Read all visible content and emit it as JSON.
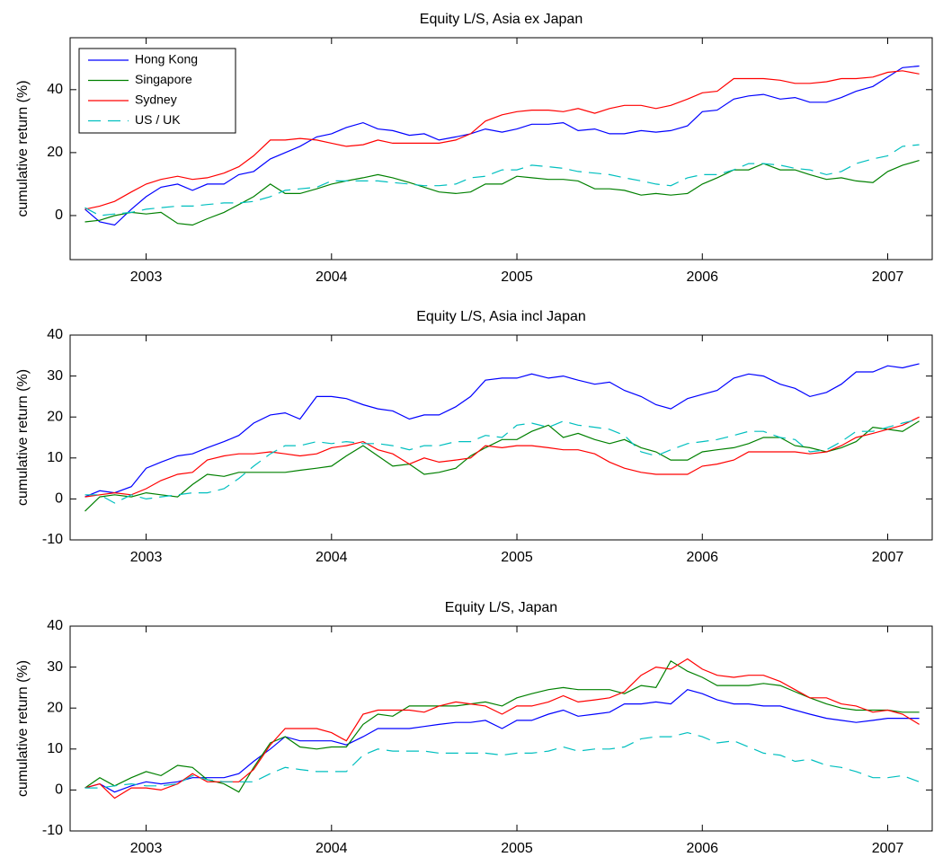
{
  "chart_data": [
    {
      "type": "line",
      "title": "Equity L/S, Asia ex Japan",
      "ylabel": "cumulative return (%)",
      "legend": "upper left",
      "xlim": [
        2002.59,
        2007.24
      ],
      "xticks": [
        2003,
        2004,
        2005,
        2006,
        2007
      ],
      "ylim": [
        -14,
        56.5
      ],
      "yticks": [
        0,
        20,
        40
      ],
      "x": [
        2002.67,
        2002.75,
        2002.83,
        2002.92,
        2003.0,
        2003.08,
        2003.17,
        2003.25,
        2003.33,
        2003.42,
        2003.5,
        2003.58,
        2003.67,
        2003.75,
        2003.83,
        2003.92,
        2004.0,
        2004.08,
        2004.17,
        2004.25,
        2004.33,
        2004.42,
        2004.5,
        2004.58,
        2004.67,
        2004.75,
        2004.83,
        2004.92,
        2005.0,
        2005.08,
        2005.17,
        2005.25,
        2005.33,
        2005.42,
        2005.5,
        2005.58,
        2005.67,
        2005.75,
        2005.83,
        2005.92,
        2006.0,
        2006.08,
        2006.17,
        2006.25,
        2006.33,
        2006.42,
        2006.5,
        2006.58,
        2006.67,
        2006.75,
        2006.83,
        2006.92,
        2007.0,
        2007.08,
        2007.17
      ],
      "series": [
        {
          "name": "Hong Kong",
          "color": "#0000ff",
          "linestyle": "solid",
          "values": [
            2,
            -2,
            -3,
            2,
            6,
            9,
            10,
            8,
            10,
            10,
            13,
            14,
            18,
            20,
            22,
            25,
            26,
            28,
            29.5,
            27.5,
            27,
            25.5,
            26,
            24,
            25,
            26,
            27.5,
            26.5,
            27.5,
            29,
            29,
            29.5,
            27,
            27.5,
            26,
            26,
            27,
            26.5,
            27,
            28.5,
            33,
            33.5,
            37,
            38,
            38.5,
            37,
            37.5,
            36,
            36,
            37.5,
            39.5,
            41,
            44,
            47,
            47.5
          ]
        },
        {
          "name": "Singapore",
          "color": "#008000",
          "linestyle": "solid",
          "values": [
            -2,
            -1.5,
            0,
            1,
            0.5,
            1,
            -2.5,
            -3,
            -1,
            1,
            3.5,
            6,
            10,
            7,
            7,
            8.5,
            10,
            11,
            12,
            13,
            12,
            10.5,
            9,
            7.5,
            7,
            7.5,
            10,
            10,
            12.5,
            12,
            11.5,
            11.5,
            11,
            8.5,
            8.5,
            8,
            6.5,
            7,
            6.5,
            7,
            10,
            12,
            14.5,
            14.5,
            16.5,
            14.5,
            14.5,
            13,
            11.5,
            12,
            11,
            10.5,
            14,
            16,
            17.5
          ]
        },
        {
          "name": "Sydney",
          "color": "#ff0000",
          "linestyle": "solid",
          "values": [
            2,
            3,
            4.5,
            7.5,
            10,
            11.5,
            12.5,
            11.5,
            12,
            13.5,
            15.5,
            19,
            24,
            24,
            24.5,
            24,
            23,
            22,
            22.5,
            24,
            23,
            23,
            23,
            23,
            24,
            26,
            30,
            32,
            33,
            33.5,
            33.5,
            33,
            34,
            32.5,
            34,
            35,
            35,
            34,
            35,
            37,
            39,
            39.5,
            43.5,
            43.5,
            43.5,
            43,
            42,
            42,
            42.5,
            43.5,
            43.5,
            44,
            45.5,
            46,
            45
          ]
        },
        {
          "name": "US / UK",
          "color": "#00bfbf",
          "linestyle": "dashed",
          "values": [
            2.5,
            0,
            0.5,
            1,
            2,
            2.5,
            3,
            3,
            3.5,
            4,
            4,
            4.5,
            6,
            8,
            8.5,
            9,
            11,
            11,
            11,
            11,
            10.5,
            10,
            9.5,
            9.5,
            10,
            12,
            12.5,
            14.5,
            14.5,
            16,
            15.5,
            15,
            14,
            13.5,
            13,
            12,
            11,
            10,
            9.5,
            12,
            13,
            13,
            14.5,
            16.5,
            16.5,
            16,
            15,
            14.5,
            13,
            14,
            16.5,
            18,
            19,
            22,
            22.5
          ]
        }
      ]
    },
    {
      "type": "line",
      "title": "Equity L/S, Asia incl Japan",
      "ylabel": "cumulative return (%)",
      "xlim": [
        2002.59,
        2007.24
      ],
      "xticks": [
        2003,
        2004,
        2005,
        2006,
        2007
      ],
      "ylim": [
        -10,
        40
      ],
      "yticks": [
        -10,
        0,
        10,
        20,
        30,
        40
      ],
      "x": [
        2002.67,
        2002.75,
        2002.83,
        2002.92,
        2003.0,
        2003.08,
        2003.17,
        2003.25,
        2003.33,
        2003.42,
        2003.5,
        2003.58,
        2003.67,
        2003.75,
        2003.83,
        2003.92,
        2004.0,
        2004.08,
        2004.17,
        2004.25,
        2004.33,
        2004.42,
        2004.5,
        2004.58,
        2004.67,
        2004.75,
        2004.83,
        2004.92,
        2005.0,
        2005.08,
        2005.17,
        2005.25,
        2005.33,
        2005.42,
        2005.5,
        2005.58,
        2005.67,
        2005.75,
        2005.83,
        2005.92,
        2006.0,
        2006.08,
        2006.17,
        2006.25,
        2006.33,
        2006.42,
        2006.5,
        2006.58,
        2006.67,
        2006.75,
        2006.83,
        2006.92,
        2007.0,
        2007.08,
        2007.17
      ],
      "series": [
        {
          "color": "#0000ff",
          "linestyle": "solid",
          "values": [
            0.5,
            2,
            1.5,
            3,
            7.5,
            9,
            10.5,
            11,
            12.5,
            14,
            15.5,
            18.5,
            20.5,
            21,
            19.5,
            25,
            25,
            24.5,
            23,
            22,
            21.5,
            19.5,
            20.5,
            20.5,
            22.5,
            25,
            29,
            29.5,
            29.5,
            30.5,
            29.5,
            30,
            29,
            28,
            28.5,
            26.5,
            25,
            23,
            22,
            24.5,
            25.5,
            26.5,
            29.5,
            30.5,
            30,
            28,
            27,
            25,
            26,
            28,
            31,
            31,
            32.5,
            32,
            33
          ]
        },
        {
          "color": "#008000",
          "linestyle": "solid",
          "values": [
            -3,
            0.5,
            1,
            0.5,
            1.5,
            1,
            0.5,
            3.5,
            6,
            5.5,
            6.5,
            6.5,
            6.5,
            6.5,
            7,
            7.5,
            8,
            10.5,
            13,
            10.5,
            8,
            8.5,
            6,
            6.5,
            7.5,
            10.5,
            12.5,
            14.5,
            14.5,
            16.5,
            18,
            15,
            16,
            14.5,
            13.5,
            14.5,
            12.5,
            11.5,
            9.5,
            9.5,
            11.5,
            12,
            12.5,
            13.5,
            15,
            15,
            13,
            12.5,
            11.5,
            12.5,
            14,
            17.5,
            17,
            16.5,
            19
          ]
        },
        {
          "color": "#ff0000",
          "linestyle": "solid",
          "values": [
            0.5,
            1,
            1.5,
            1,
            2.5,
            4.5,
            6,
            6.5,
            9.5,
            10.5,
            11,
            11,
            11.5,
            11,
            10.5,
            11,
            12.5,
            13,
            14,
            12,
            11,
            8.5,
            10,
            9,
            9.5,
            10,
            13,
            12.5,
            13,
            13,
            12.5,
            12,
            12,
            11,
            9,
            7.5,
            6.5,
            6,
            6,
            6,
            8,
            8.5,
            9.5,
            11.5,
            11.5,
            11.5,
            11.5,
            11,
            11.5,
            13,
            15,
            16,
            17,
            18,
            20
          ]
        },
        {
          "color": "#00bfbf",
          "linestyle": "dashed",
          "values": [
            1,
            1,
            -1,
            1,
            0,
            0.5,
            1,
            1.5,
            1.5,
            2.5,
            5,
            8,
            11,
            13,
            13,
            14,
            13.5,
            14,
            13.5,
            13.5,
            13,
            12,
            13,
            13,
            14,
            14,
            15.5,
            15,
            18,
            18.5,
            17.5,
            19,
            18,
            17.5,
            17,
            15.5,
            11.5,
            10.5,
            12,
            13.5,
            14,
            14.5,
            15.5,
            16.5,
            16.5,
            15,
            14.5,
            11.5,
            12,
            14,
            16.5,
            16.5,
            17.5,
            18.5,
            19.5
          ]
        }
      ]
    },
    {
      "type": "line",
      "title": "Equity L/S, Japan",
      "ylabel": "cumulative return (%)",
      "xlim": [
        2002.59,
        2007.24
      ],
      "xticks": [
        2003,
        2004,
        2005,
        2006,
        2007
      ],
      "ylim": [
        -10,
        40
      ],
      "yticks": [
        -10,
        0,
        10,
        20,
        30,
        40
      ],
      "x": [
        2002.67,
        2002.75,
        2002.83,
        2002.92,
        2003.0,
        2003.08,
        2003.17,
        2003.25,
        2003.33,
        2003.42,
        2003.5,
        2003.58,
        2003.67,
        2003.75,
        2003.83,
        2003.92,
        2004.0,
        2004.08,
        2004.17,
        2004.25,
        2004.33,
        2004.42,
        2004.5,
        2004.58,
        2004.67,
        2004.75,
        2004.83,
        2004.92,
        2005.0,
        2005.08,
        2005.17,
        2005.25,
        2005.33,
        2005.42,
        2005.5,
        2005.58,
        2005.67,
        2005.75,
        2005.83,
        2005.92,
        2006.0,
        2006.08,
        2006.17,
        2006.25,
        2006.33,
        2006.42,
        2006.5,
        2006.58,
        2006.67,
        2006.75,
        2006.83,
        2006.92,
        2007.0,
        2007.08,
        2007.17
      ],
      "series": [
        {
          "color": "#0000ff",
          "linestyle": "solid",
          "values": [
            0.5,
            1.5,
            -0.5,
            1,
            2,
            1.5,
            2,
            3,
            3,
            3,
            4,
            7,
            10,
            13,
            12,
            12,
            12,
            11,
            13,
            15,
            15,
            15,
            15.5,
            16,
            16.5,
            16.5,
            17,
            15,
            17,
            17,
            18.5,
            19.5,
            18,
            18.5,
            19,
            21,
            21,
            21.5,
            21,
            24.5,
            23.5,
            22,
            21,
            21,
            20.5,
            20.5,
            19.5,
            18.5,
            17.5,
            17,
            16.5,
            17,
            17.5,
            17.5,
            17.5
          ]
        },
        {
          "color": "#008000",
          "linestyle": "solid",
          "values": [
            0.5,
            3,
            1,
            3,
            4.5,
            3.5,
            6,
            5.5,
            2.5,
            1.5,
            -0.5,
            5.5,
            11.5,
            13,
            10.5,
            10,
            10.5,
            10.5,
            16,
            18.5,
            18,
            20.5,
            20.5,
            20.5,
            20.5,
            21,
            21.5,
            20.5,
            22.5,
            23.5,
            24.5,
            25,
            24.5,
            24.5,
            24.5,
            23.5,
            25.5,
            25,
            31.5,
            29,
            27.5,
            25.5,
            25.5,
            25.5,
            26,
            25.5,
            24,
            22.5,
            21,
            20,
            19.5,
            19.5,
            19.5,
            19,
            19
          ]
        },
        {
          "color": "#ff0000",
          "linestyle": "solid",
          "values": [
            0.5,
            1.5,
            -2,
            0.5,
            0.5,
            0,
            1.5,
            4,
            2,
            2,
            2,
            5,
            11,
            15,
            15,
            15,
            14,
            12,
            18.5,
            19.5,
            19.5,
            19.5,
            19,
            20.5,
            21.5,
            21,
            20.5,
            18.5,
            20.5,
            20.5,
            21.5,
            23,
            21.5,
            22,
            22.5,
            24,
            28,
            30,
            29.5,
            32,
            29.5,
            28,
            27.5,
            28,
            28,
            26.5,
            24.5,
            22.5,
            22.5,
            21,
            20.5,
            19,
            19.5,
            18.5,
            16
          ]
        },
        {
          "color": "#00bfbf",
          "linestyle": "dashed",
          "values": [
            0.5,
            0.5,
            1,
            1.5,
            1,
            1,
            1.5,
            3.5,
            2.5,
            2,
            2,
            2,
            4,
            5.5,
            5,
            4.5,
            4.5,
            4.5,
            8.5,
            10,
            9.5,
            9.5,
            9.5,
            9,
            9,
            9,
            9,
            8.5,
            9,
            9,
            9.5,
            10.5,
            9.5,
            10,
            10,
            10.5,
            12.5,
            13,
            13,
            14,
            13,
            11.5,
            12,
            10.5,
            9,
            8.5,
            7,
            7.5,
            6,
            5.5,
            4.5,
            3,
            3,
            3.5,
            2
          ]
        }
      ]
    }
  ]
}
